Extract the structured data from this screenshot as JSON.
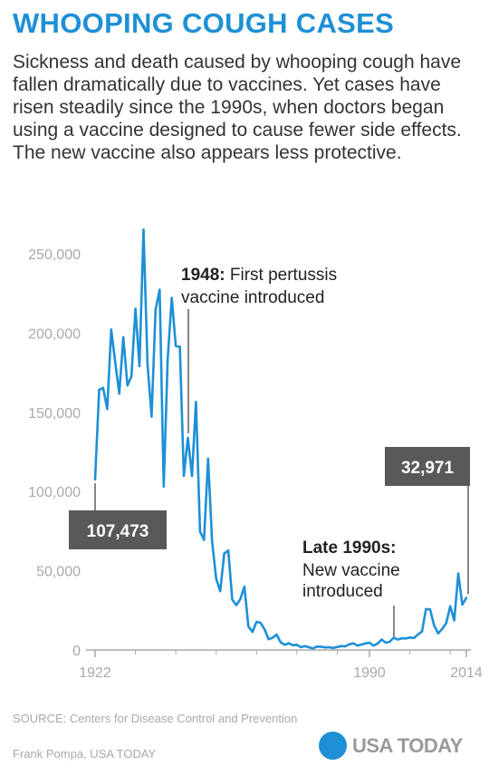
{
  "title": "WHOOPING COUGH CASES",
  "subtitle": "Sickness and death caused by whooping cough have fallen dramatically due to vaccines. Yet cases have risen steadily since the 1990s, when doctors began using a vaccine designed to cause fewer side effects. The new vaccine also appears less protective.",
  "source": "SOURCE:  Centers for Disease Control and Prevention",
  "credit": "Frank Pompa, USA TODAY",
  "logo_text": "USA TODAY",
  "colors": {
    "accent": "#1e90d6",
    "callout": "#58595b",
    "axis": "#a9a9a9"
  },
  "annotations": {
    "vaccine_1948_year": "1948:",
    "vaccine_1948_text_1": " First pertussis",
    "vaccine_1948_text_2": "vaccine introduced",
    "late_1990s_title": "Late 1990s:",
    "late_1990s_text_1": "New vaccine",
    "late_1990s_text_2": "introduced",
    "first_value_label": "107,473",
    "last_value_label": "32,971"
  },
  "chart_data": {
    "type": "line",
    "title": "",
    "xlabel": "",
    "ylabel": "",
    "ylim": [
      0,
      250000
    ],
    "xlim": [
      1922,
      2014
    ],
    "y_ticks": [
      0,
      50000,
      100000,
      150000,
      200000,
      250000
    ],
    "y_tick_labels": [
      "0",
      "50,000",
      "100,000",
      "150,000",
      "200,000",
      "250,000"
    ],
    "x_tick_labels": [
      "1922",
      "1990",
      "2014"
    ],
    "x_ticks": [
      1922,
      1990,
      2014
    ],
    "grid": false,
    "series": [
      {
        "color": "#1e90d6",
        "x": [
          1922,
          1923,
          1924,
          1925,
          1926,
          1927,
          1928,
          1929,
          1930,
          1931,
          1932,
          1933,
          1934,
          1935,
          1936,
          1937,
          1938,
          1939,
          1940,
          1941,
          1942,
          1943,
          1944,
          1945,
          1946,
          1947,
          1948,
          1949,
          1950,
          1951,
          1952,
          1953,
          1954,
          1955,
          1956,
          1957,
          1958,
          1959,
          1960,
          1961,
          1962,
          1963,
          1964,
          1965,
          1966,
          1967,
          1968,
          1969,
          1970,
          1971,
          1972,
          1973,
          1974,
          1975,
          1976,
          1977,
          1978,
          1979,
          1980,
          1981,
          1982,
          1983,
          1984,
          1985,
          1986,
          1987,
          1988,
          1989,
          1990,
          1991,
          1992,
          1993,
          1994,
          1995,
          1996,
          1997,
          1998,
          1999,
          2000,
          2001,
          2002,
          2003,
          2004,
          2005,
          2006,
          2007,
          2008,
          2009,
          2010,
          2011,
          2012,
          2013,
          2014
        ],
        "values": [
          107473,
          164191,
          165418,
          152003,
          202210,
          181411,
          161799,
          197371,
          166914,
          172559,
          215343,
          179135,
          265269,
          180518,
          147237,
          214652,
          227319,
          103188,
          183866,
          222202,
          191890,
          191383,
          109873,
          133792,
          109860,
          156517,
          74715,
          69479,
          120718,
          68687,
          45030,
          37129,
          60886,
          62786,
          31732,
          28295,
          32148,
          40005,
          14809,
          11468,
          17749,
          17135,
          13005,
          6799,
          7717,
          9718,
          4810,
          3285,
          4249,
          3036,
          3287,
          1759,
          2402,
          1738,
          1010,
          2177,
          2063,
          1623,
          1730,
          1248,
          1895,
          2463,
          2276,
          3589,
          4195,
          2823,
          3450,
          4157,
          4570,
          2719,
          4083,
          6586,
          4617,
          5137,
          7796,
          6564,
          7405,
          7288,
          7867,
          7580,
          9771,
          11647,
          25827,
          25616,
          15632,
          10454,
          13278,
          16858,
          27550,
          18719,
          48277,
          28639,
          32971
        ]
      }
    ]
  }
}
